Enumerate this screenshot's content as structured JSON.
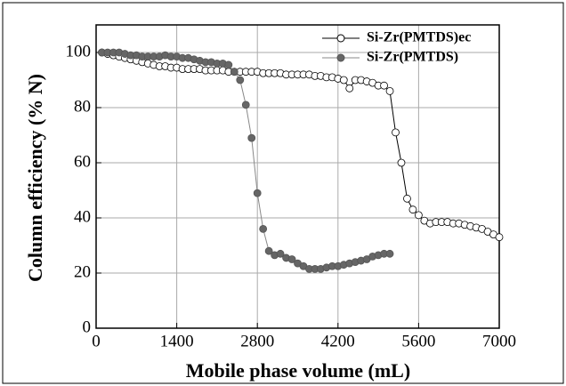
{
  "chart_data": {
    "type": "line",
    "xlabel": "Mobile phase volume (mL)",
    "ylabel": "Column efficiency (% N)",
    "xlim": [
      0,
      7000
    ],
    "xticks": [
      0,
      1400,
      2800,
      4200,
      5600,
      7000
    ],
    "ylim": [
      0,
      110
    ],
    "yticks": [
      0,
      20,
      40,
      60,
      80,
      100
    ],
    "grid": true,
    "legend": "upper right",
    "series": [
      {
        "name": "Si-Zr(PMTDS)ec",
        "color": "#000000",
        "marker_fill": "#ffffff",
        "x": [
          100,
          200,
          300,
          400,
          500,
          600,
          700,
          800,
          900,
          1000,
          1100,
          1200,
          1300,
          1400,
          1500,
          1600,
          1700,
          1800,
          1900,
          2000,
          2100,
          2200,
          2300,
          2400,
          2500,
          2600,
          2700,
          2800,
          2900,
          3000,
          3100,
          3200,
          3300,
          3400,
          3500,
          3600,
          3700,
          3800,
          3900,
          4000,
          4100,
          4200,
          4300,
          4400,
          4500,
          4600,
          4700,
          4800,
          4900,
          5000,
          5100,
          5200,
          5300,
          5400,
          5500,
          5600,
          5700,
          5800,
          5900,
          6000,
          6100,
          6200,
          6300,
          6400,
          6500,
          6600,
          6700,
          6800,
          6900,
          7000
        ],
        "values": [
          100,
          99.5,
          99,
          98.5,
          98,
          97.5,
          97,
          96.5,
          96,
          95.5,
          95,
          95,
          94.5,
          94.5,
          94,
          94,
          94,
          94,
          93.5,
          93.5,
          93.5,
          93.5,
          93,
          93,
          93,
          93,
          93,
          93,
          92.5,
          92.5,
          92.5,
          92.5,
          92,
          92,
          92,
          92,
          92,
          91.5,
          91.5,
          91,
          91,
          90.5,
          90,
          87,
          90,
          90,
          89.5,
          89,
          88,
          88,
          86,
          71,
          60,
          47,
          43,
          41,
          39,
          38,
          38.5,
          38.5,
          38.5,
          38,
          38,
          37.5,
          37,
          36.5,
          36,
          35,
          34,
          33
        ]
      },
      {
        "name": "Si-Zr(PMTDS)",
        "color": "#888888",
        "marker_fill": "#666666",
        "x": [
          100,
          200,
          300,
          400,
          500,
          600,
          700,
          800,
          900,
          1000,
          1100,
          1200,
          1300,
          1400,
          1500,
          1600,
          1700,
          1800,
          1900,
          2000,
          2100,
          2200,
          2300,
          2400,
          2500,
          2600,
          2700,
          2800,
          2900,
          3000,
          3100,
          3200,
          3300,
          3400,
          3500,
          3600,
          3700,
          3800,
          3900,
          4000,
          4100,
          4200,
          4300,
          4400,
          4500,
          4600,
          4700,
          4800,
          4900,
          5000,
          5100
        ],
        "values": [
          100,
          100,
          100,
          100,
          99.5,
          99,
          99,
          98.5,
          98.5,
          98.5,
          98.5,
          99,
          98.5,
          98.5,
          98,
          98,
          97.5,
          97,
          96.5,
          96.5,
          96,
          96,
          95.5,
          93,
          90,
          81,
          69,
          49,
          36,
          28,
          26.5,
          27,
          25.5,
          25,
          23.5,
          22.5,
          21.5,
          21.5,
          21.5,
          22,
          22.5,
          22.5,
          23,
          23.5,
          24,
          24.5,
          25,
          26,
          26.5,
          27,
          27
        ]
      }
    ]
  }
}
